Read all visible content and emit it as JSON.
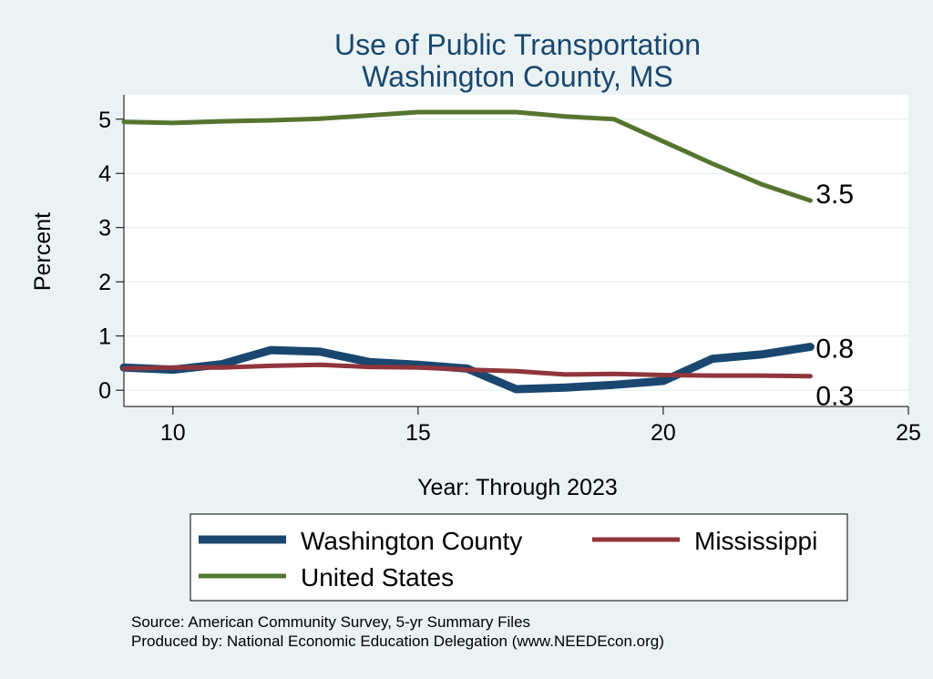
{
  "chart_data": {
    "type": "line",
    "title": [
      "Use of Public Transportation",
      "Washington County, MS"
    ],
    "xlabel": "Year: Through 2023",
    "ylabel": "Percent",
    "xlim": [
      9,
      25
    ],
    "ylim": [
      0,
      5
    ],
    "xticks": [
      10,
      15,
      20,
      25
    ],
    "yticks": [
      0,
      1,
      2,
      3,
      4,
      5
    ],
    "grid": true,
    "legend_position": "bottom",
    "series": [
      {
        "name": "Washington County",
        "color": "#1a476f",
        "x": [
          9,
          10,
          11,
          12,
          13,
          14,
          15,
          16,
          17,
          18,
          19,
          20,
          21,
          22,
          23
        ],
        "y": [
          0.42,
          0.38,
          0.48,
          0.74,
          0.71,
          0.52,
          0.47,
          0.4,
          0.02,
          0.05,
          0.1,
          0.17,
          0.58,
          0.66,
          0.8
        ],
        "end_label": "0.8"
      },
      {
        "name": "Mississippi",
        "color": "#90353b",
        "x": [
          9,
          10,
          11,
          12,
          13,
          14,
          15,
          16,
          17,
          18,
          19,
          20,
          21,
          22,
          23
        ],
        "y": [
          0.4,
          0.42,
          0.42,
          0.45,
          0.47,
          0.43,
          0.42,
          0.38,
          0.35,
          0.29,
          0.3,
          0.28,
          0.27,
          0.27,
          0.26
        ],
        "end_label": "0.3"
      },
      {
        "name": "United States",
        "color": "#55752f",
        "x": [
          9,
          10,
          11,
          12,
          13,
          14,
          15,
          16,
          17,
          18,
          19,
          20,
          21,
          22,
          23
        ],
        "y": [
          4.95,
          4.93,
          4.96,
          4.98,
          5.01,
          5.07,
          5.13,
          5.13,
          5.13,
          5.05,
          5.0,
          4.59,
          4.18,
          3.8,
          3.5
        ],
        "end_label": "3.5"
      }
    ],
    "notes": [
      "Source: American Community Survey, 5-yr Summary Files",
      "Produced by: National Economic Education Delegation (www.NEEDEcon.org)"
    ]
  }
}
